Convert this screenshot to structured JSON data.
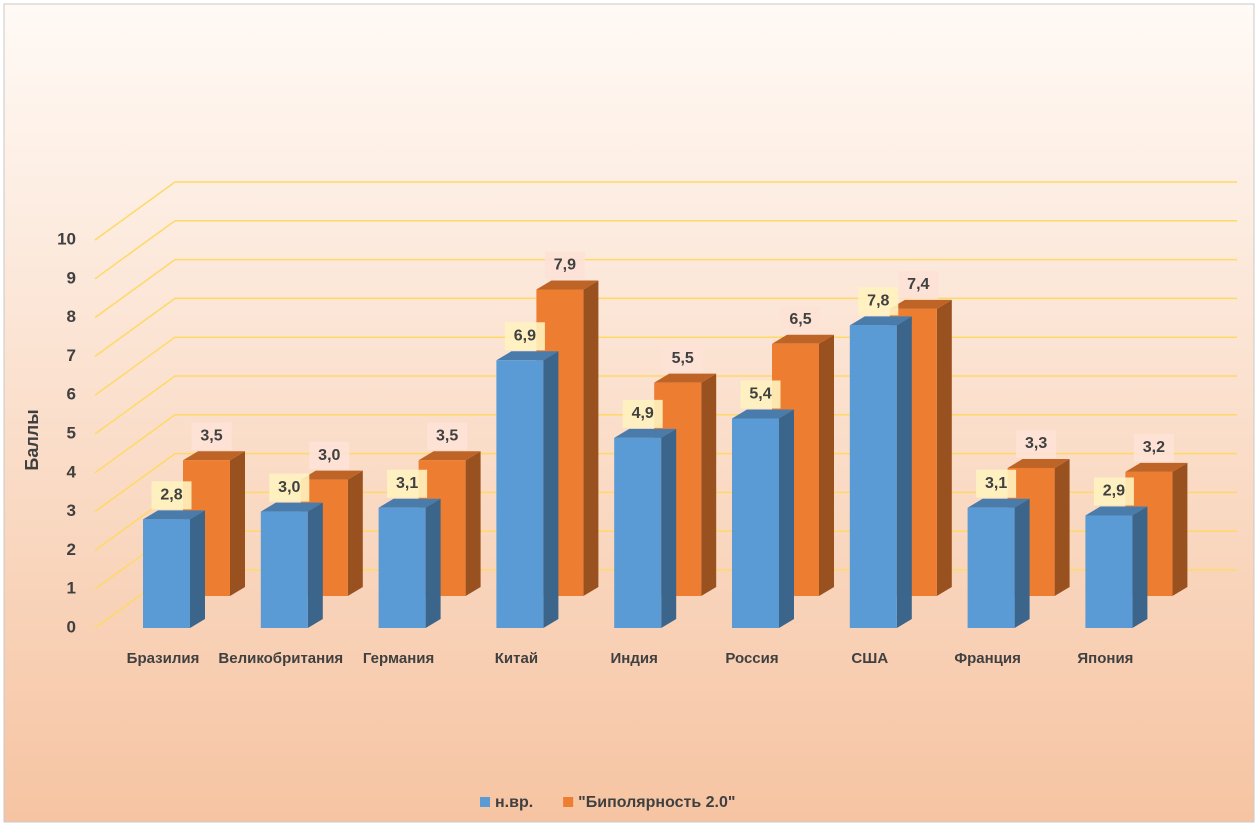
{
  "chart_data": {
    "type": "bar3d",
    "y_label": "Баллы",
    "categories": [
      "Бразилия",
      "Великобритания",
      "Германия",
      "Китай",
      "Индия",
      "Россия",
      "США",
      "Франция",
      "Япония"
    ],
    "series": [
      {
        "name": "н.вр.",
        "color": "#5b9bd5",
        "values": [
          2.8,
          3.0,
          3.1,
          6.9,
          4.9,
          5.4,
          7.8,
          3.1,
          2.9
        ],
        "value_labels": [
          "2,8",
          "3,0",
          "3,1",
          "6,9",
          "4,9",
          "5,4",
          "7,8",
          "3,1",
          "2,9"
        ]
      },
      {
        "name": "\"Биполярность 2.0\"",
        "color": "#ed7d31",
        "values": [
          3.5,
          3.0,
          3.5,
          7.9,
          5.5,
          6.5,
          7.4,
          3.3,
          3.2
        ],
        "value_labels": [
          "3,5",
          "3,0",
          "3,5",
          "7,9",
          "5,5",
          "6,5",
          "7,4",
          "3,3",
          "3,2"
        ]
      }
    ],
    "ylim": [
      0,
      10
    ],
    "yticks": [
      0,
      1,
      2,
      3,
      4,
      5,
      6,
      7,
      8,
      9,
      10
    ],
    "grid": true,
    "legend": "bottom"
  }
}
